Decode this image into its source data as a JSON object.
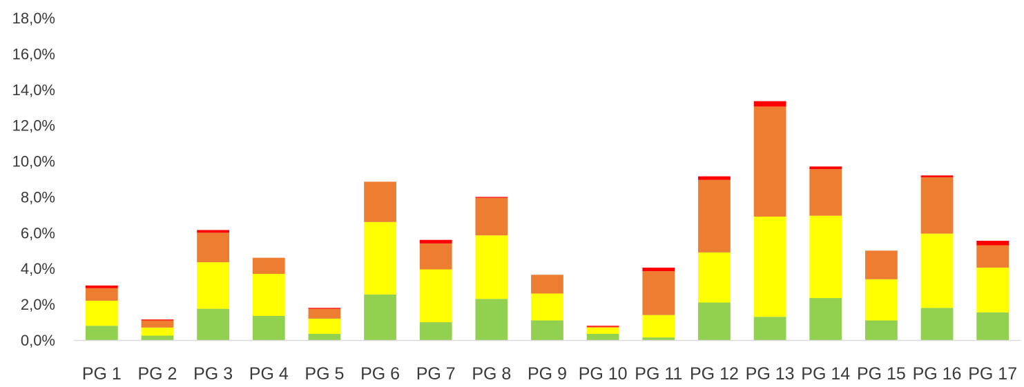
{
  "chart_data": {
    "type": "bar",
    "stacked": true,
    "categories": [
      "PG 1",
      "PG 2",
      "PG 3",
      "PG 4",
      "PG 5",
      "PG 6",
      "PG 7",
      "PG 8",
      "PG 9",
      "PG 10",
      "PG 11",
      "PG 12",
      "PG 13",
      "PG 14",
      "PG 15",
      "PG 16",
      "PG 17"
    ],
    "series": [
      {
        "color": "#92d050",
        "values": [
          0.8,
          0.25,
          1.75,
          1.35,
          0.35,
          2.55,
          1.0,
          2.3,
          1.1,
          0.35,
          0.15,
          2.1,
          1.3,
          2.35,
          1.1,
          1.8,
          1.55
        ]
      },
      {
        "color": "#ffff00",
        "values": [
          1.4,
          0.45,
          2.6,
          2.35,
          0.85,
          4.05,
          2.95,
          3.55,
          1.5,
          0.35,
          1.25,
          2.8,
          5.6,
          4.6,
          2.3,
          4.15,
          2.5
        ]
      },
      {
        "color": "#ed7d31",
        "values": [
          0.7,
          0.4,
          1.65,
          0.9,
          0.55,
          2.25,
          1.45,
          2.1,
          1.05,
          0.05,
          2.45,
          4.05,
          6.15,
          2.6,
          1.6,
          3.15,
          1.25
        ]
      },
      {
        "color": "#ff0000",
        "values": [
          0.15,
          0.05,
          0.15,
          0.0,
          0.05,
          0.0,
          0.2,
          0.05,
          0.0,
          0.05,
          0.2,
          0.2,
          0.3,
          0.15,
          0.0,
          0.1,
          0.25
        ]
      }
    ],
    "ylim": [
      0,
      18
    ],
    "yticks": [
      0,
      2,
      4,
      6,
      8,
      10,
      12,
      14,
      16,
      18
    ],
    "ytick_labels": [
      "0,0%",
      "2,0%",
      "4,0%",
      "6,0%",
      "8,0%",
      "10,0%",
      "12,0%",
      "14,0%",
      "16,0%",
      "18,0%"
    ],
    "title": "",
    "xlabel": "",
    "ylabel": "",
    "grid": false,
    "legend": "none"
  }
}
